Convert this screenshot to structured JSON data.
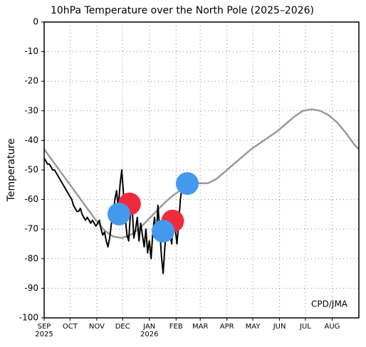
{
  "chart_data": {
    "type": "line",
    "title": "10hPa Temperature over the North Pole (2025–2026)",
    "y_label": "Temperature",
    "annotation": "CPD/JMA",
    "xlim": [
      0,
      365
    ],
    "ylim": [
      -100,
      0
    ],
    "xticks": [
      {
        "value": 0,
        "label": "SEP"
      },
      {
        "value": 30,
        "label": "OCT"
      },
      {
        "value": 61,
        "label": "NOV"
      },
      {
        "value": 91,
        "label": "DEC"
      },
      {
        "value": 122,
        "label": "JAN"
      },
      {
        "value": 153,
        "label": "FEB"
      },
      {
        "value": 181,
        "label": "MAR"
      },
      {
        "value": 212,
        "label": "APR"
      },
      {
        "value": 242,
        "label": "MAY"
      },
      {
        "value": 273,
        "label": "JUN"
      },
      {
        "value": 303,
        "label": "JUL"
      },
      {
        "value": 334,
        "label": "AUG"
      }
    ],
    "x_year_labels": [
      {
        "value": 0,
        "label": "2025"
      },
      {
        "value": 122,
        "label": "2026"
      }
    ],
    "yticks": [
      0,
      -10,
      -20,
      -30,
      -40,
      -50,
      -60,
      -70,
      -80,
      -90,
      -100
    ],
    "grid": true,
    "series": [
      {
        "color": "#999999",
        "x": [
          0,
          10,
          20,
          30,
          40,
          50,
          60,
          70,
          80,
          90,
          100,
          110,
          120,
          130,
          140,
          150,
          160,
          170,
          180,
          190,
          200,
          210,
          220,
          230,
          240,
          250,
          260,
          270,
          280,
          290,
          300,
          310,
          320,
          330,
          340,
          350,
          360,
          365
        ],
        "values": [
          -43,
          -47,
          -51,
          -55,
          -59,
          -63,
          -67,
          -70.5,
          -72.5,
          -73,
          -72,
          -70,
          -67,
          -64,
          -61,
          -58.5,
          -56.5,
          -55,
          -54.5,
          -54.5,
          -53,
          -50.5,
          -48,
          -45.5,
          -43,
          -41,
          -39,
          -37,
          -34.5,
          -32,
          -30,
          -29.5,
          -30,
          -31.5,
          -34,
          -37.5,
          -41.5,
          -43
        ]
      },
      {
        "color": "#000000",
        "x": [
          0,
          2,
          4,
          6,
          8,
          10,
          12,
          14,
          16,
          18,
          20,
          22,
          24,
          26,
          28,
          30,
          32,
          34,
          36,
          38,
          40,
          42,
          44,
          46,
          48,
          50,
          52,
          54,
          56,
          58,
          60,
          62,
          64,
          66,
          68,
          70,
          72,
          74,
          76,
          78,
          80,
          82,
          84,
          86,
          88,
          90,
          92,
          94,
          96,
          98,
          100,
          102,
          104,
          106,
          108,
          110,
          112,
          114,
          116,
          118,
          120,
          122,
          124,
          126,
          128,
          130,
          132,
          134,
          136,
          138,
          140,
          142,
          144,
          146,
          148,
          150,
          152,
          154,
          156,
          158,
          160
        ],
        "values": [
          -46,
          -47,
          -48,
          -48,
          -49,
          -50,
          -50,
          -51,
          -52,
          -53,
          -54,
          -55,
          -56,
          -57,
          -58,
          -59,
          -60,
          -62,
          -63,
          -64,
          -64,
          -63,
          -65,
          -66,
          -67,
          -66,
          -67,
          -68,
          -67,
          -68,
          -69,
          -68,
          -67,
          -70,
          -72,
          -71,
          -74,
          -76,
          -73,
          -68,
          -65,
          -60,
          -57,
          -63,
          -55,
          -50,
          -58,
          -66,
          -72,
          -74,
          -65,
          -62,
          -73,
          -70,
          -66,
          -74,
          -68,
          -72,
          -76,
          -70,
          -78,
          -74,
          -80,
          -71,
          -66,
          -73,
          -62,
          -70,
          -79,
          -85,
          -76,
          -69,
          -64,
          -72,
          -75,
          -64,
          -70,
          -75,
          -68,
          -60,
          -55
        ]
      }
    ],
    "markers": [
      {
        "color": "#ee2a3c",
        "x": [
          99,
          149
        ],
        "values": [
          -61.5,
          -67.3
        ]
      },
      {
        "color": "#4499ee",
        "x": [
          86.7,
          138,
          166
        ],
        "values": [
          -64.9,
          -70.7,
          -54.6
        ]
      }
    ]
  }
}
